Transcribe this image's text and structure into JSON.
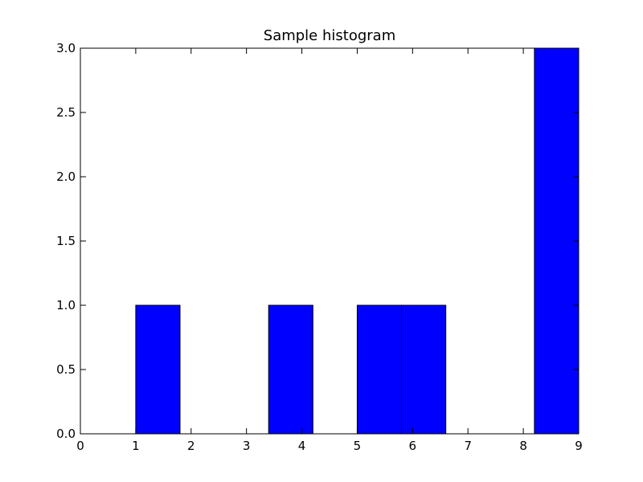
{
  "chart_data": {
    "type": "bar",
    "title": "Sample histogram",
    "xlabel": "",
    "ylabel": "",
    "xlim": [
      0,
      9
    ],
    "ylim": [
      0,
      3.0
    ],
    "bin_edges": [
      1.0,
      1.8,
      2.6,
      3.4,
      4.2,
      5.0,
      5.8,
      6.6,
      7.4,
      8.2,
      9.0
    ],
    "values": [
      1,
      0,
      0,
      1,
      0,
      1,
      1,
      0,
      0,
      3
    ],
    "x_ticks": [
      "0",
      "1",
      "2",
      "3",
      "4",
      "5",
      "6",
      "7",
      "8",
      "9"
    ],
    "y_ticks": [
      "0.0",
      "0.5",
      "1.0",
      "1.5",
      "2.0",
      "2.5",
      "3.0"
    ],
    "bar_color": "#0000ff",
    "grid": false,
    "legend": "none"
  }
}
